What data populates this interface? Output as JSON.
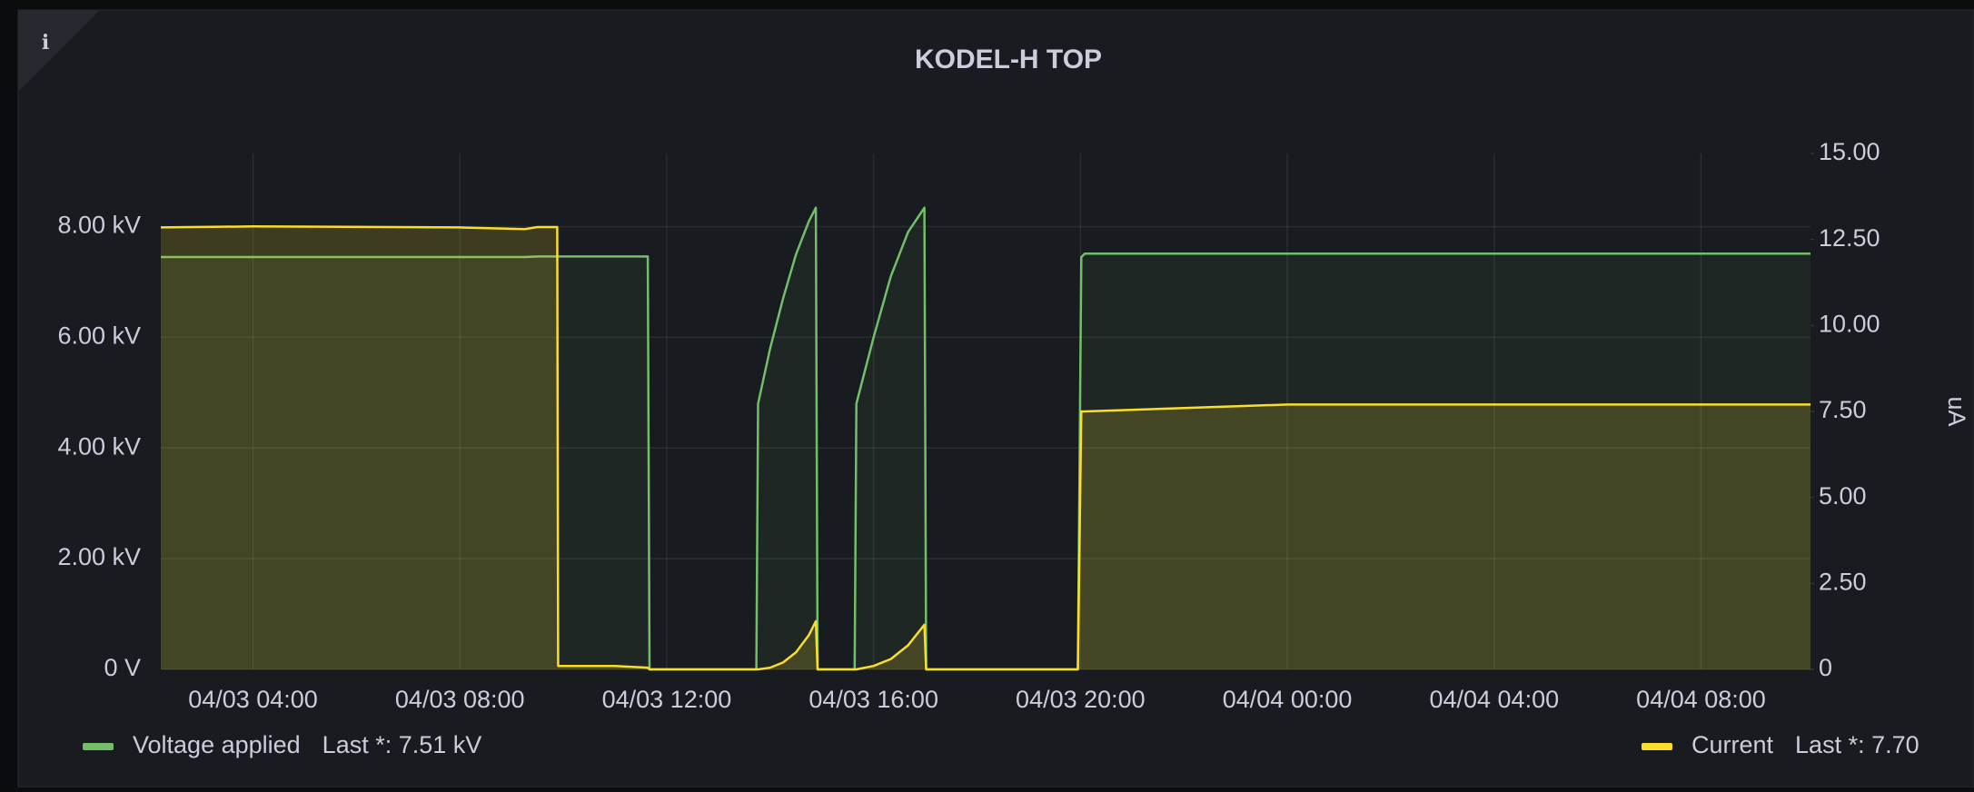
{
  "chart_data": {
    "type": "line",
    "title": "KODEL-H TOP",
    "info_icon": "i",
    "x": [
      "04/03 02:13",
      "04/03 04:00",
      "04/03 08:00",
      "04/03 09:15",
      "04/03 09:30",
      "04/03 09:53",
      "04/03 09:54",
      "04/03 11:00",
      "04/03 11:38",
      "04/03 11:40",
      "04/03 13:44",
      "04/03 13:46",
      "04/03 14:00",
      "04/03 14:15",
      "04/03 14:30",
      "04/03 14:45",
      "04/03 14:53",
      "04/03 14:55",
      "04/03 15:38",
      "04/03 15:40",
      "04/03 16:00",
      "04/03 16:20",
      "04/03 16:40",
      "04/03 16:59",
      "04/03 17:01",
      "04/03 19:57",
      "04/03 20:01",
      "04/03 20:05",
      "04/03 22:00",
      "04/04 00:00",
      "04/04 04:00",
      "04/04 08:00",
      "04/04 10:07"
    ],
    "series": [
      {
        "name": "Voltage applied",
        "last": "Last *: 7.51 kV",
        "color": "#73bf69",
        "axis": "y",
        "values": [
          7.45,
          7.45,
          7.45,
          7.45,
          7.46,
          7.46,
          7.46,
          7.46,
          7.46,
          0,
          0,
          4.8,
          5.8,
          6.7,
          7.5,
          8.1,
          8.34,
          0,
          0,
          4.8,
          6.0,
          7.1,
          7.9,
          8.34,
          0,
          0,
          7.45,
          7.51,
          7.51,
          7.51,
          7.51,
          7.51,
          7.51
        ]
      },
      {
        "name": "Current",
        "last": "Last *: 7.70",
        "color": "#fade2a",
        "axis": "y2",
        "values": [
          12.85,
          12.88,
          12.85,
          12.8,
          12.86,
          12.86,
          0.1,
          0.1,
          0.05,
          0,
          0,
          0,
          0.05,
          0.2,
          0.5,
          1.0,
          1.4,
          0,
          0,
          0,
          0.1,
          0.3,
          0.7,
          1.3,
          0,
          0,
          7.5,
          7.5,
          7.6,
          7.7,
          7.7,
          7.7,
          7.7
        ]
      }
    ],
    "xlim": [
      "04/03 02:13",
      "04/04 10:07"
    ],
    "xticks": [
      "04/03 04:00",
      "04/03 08:00",
      "04/03 12:00",
      "04/03 16:00",
      "04/03 20:00",
      "04/04 00:00",
      "04/04 04:00",
      "04/04 08:00"
    ],
    "ylim": [
      0,
      9.32
    ],
    "yticks": [
      {
        "value": 0,
        "label": "0 V"
      },
      {
        "value": 2,
        "label": "2.00 kV"
      },
      {
        "value": 4,
        "label": "4.00 kV"
      },
      {
        "value": 6,
        "label": "6.00 kV"
      },
      {
        "value": 8,
        "label": "8.00 kV"
      }
    ],
    "y2lim": [
      0,
      15
    ],
    "y2ticks": [
      0,
      {
        "value": 2.5,
        "label": "2.50"
      },
      {
        "value": 5,
        "label": "5.00"
      },
      {
        "value": 7.5,
        "label": "7.50"
      },
      {
        "value": 10,
        "label": "10.00"
      },
      {
        "value": 12.5,
        "label": "12.50"
      },
      {
        "value": 15,
        "label": "15.00"
      }
    ],
    "y2label": "uA",
    "grid": true
  }
}
